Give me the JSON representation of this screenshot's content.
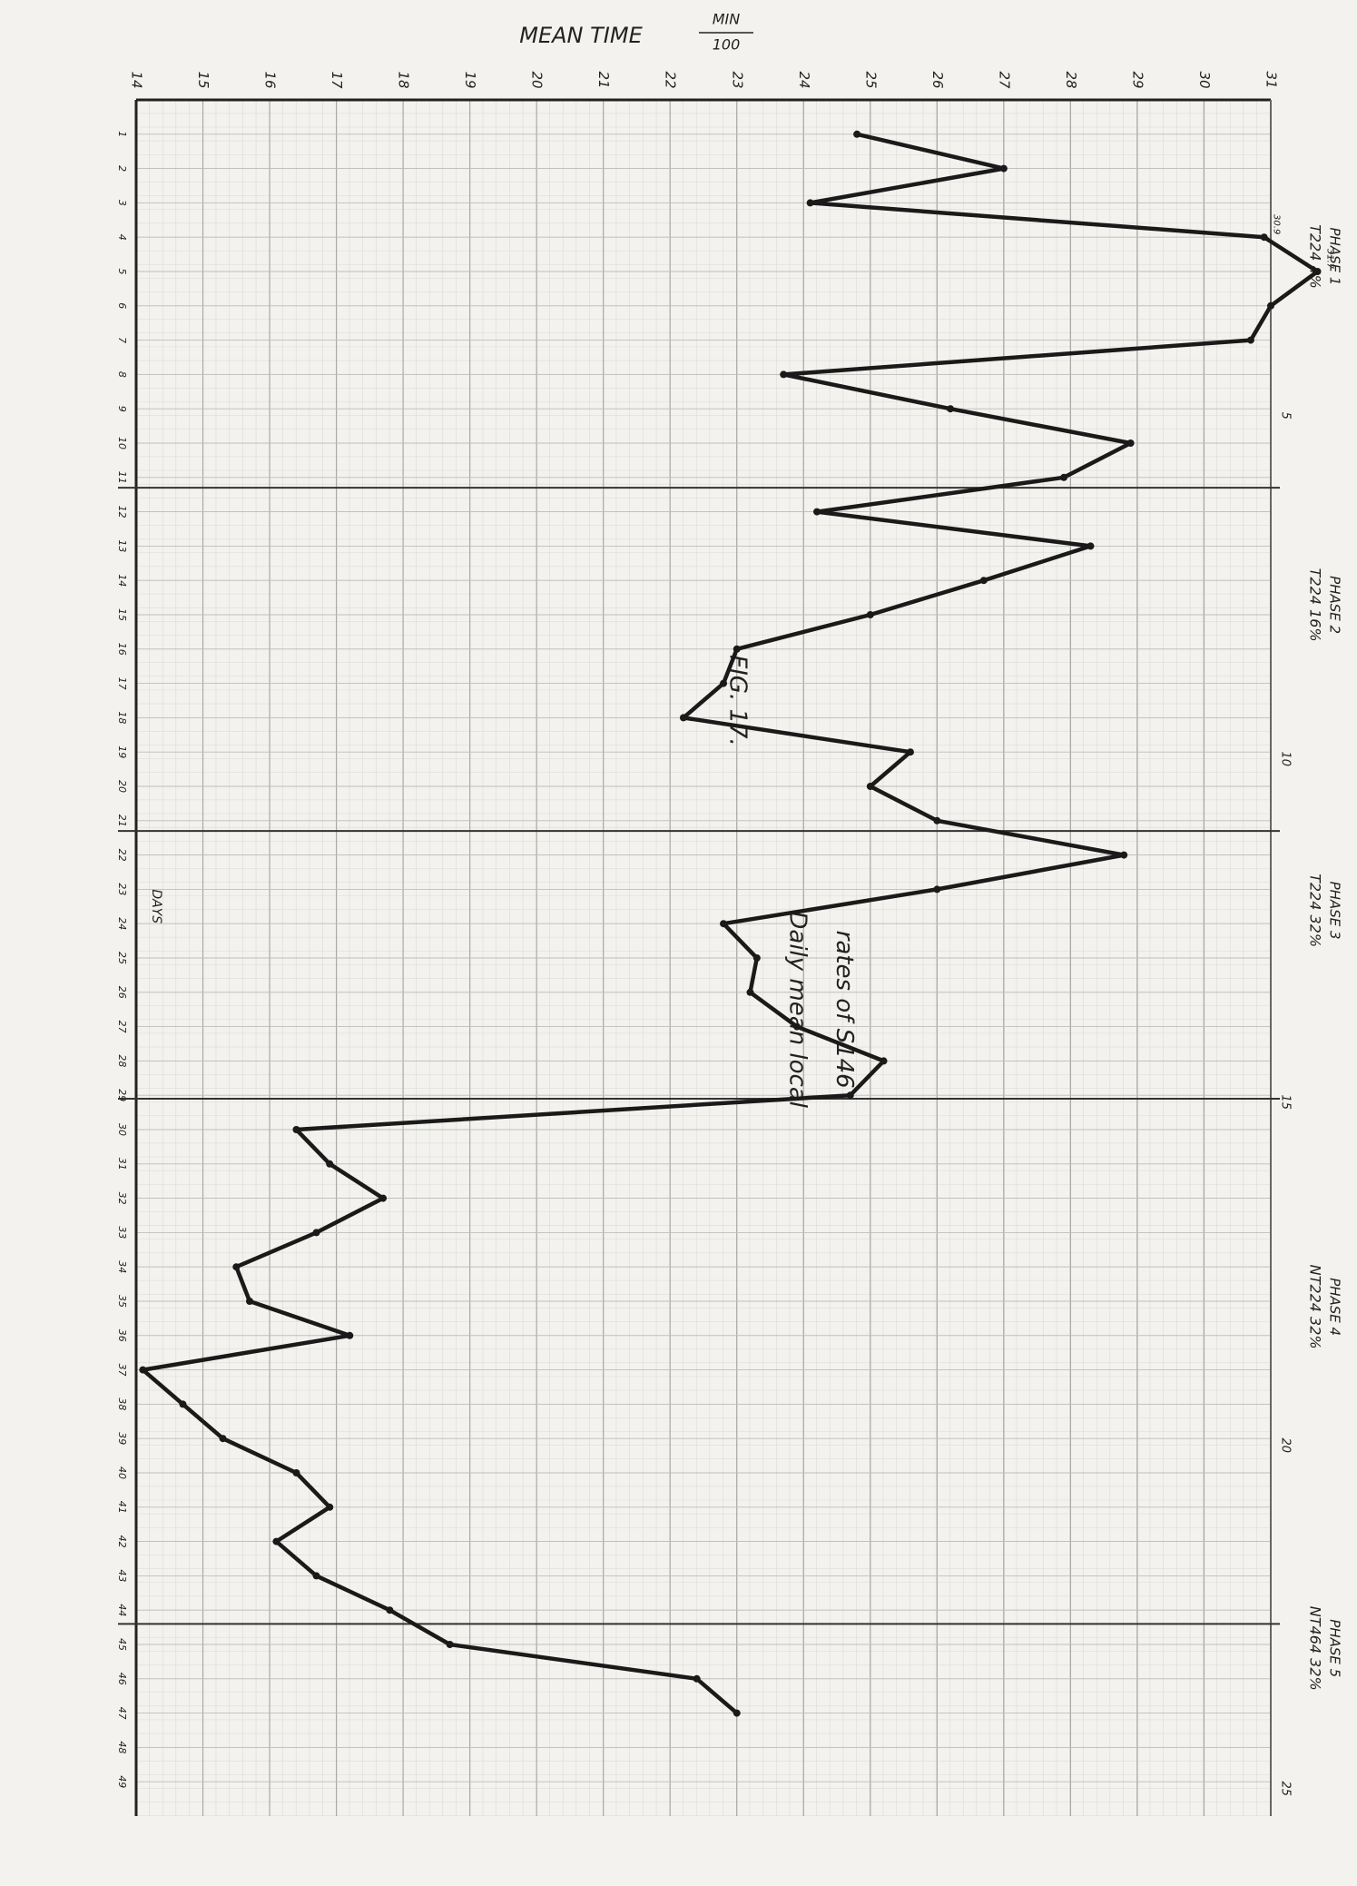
{
  "chart_data": {
    "type": "line",
    "title": "MEAN TIME",
    "unit_numerator": "MIN",
    "unit_denominator": "100",
    "x_label": "DAYS",
    "x": [
      1,
      2,
      3,
      4,
      5,
      6,
      7,
      8,
      9,
      10,
      11,
      12,
      13,
      14,
      15,
      16,
      17,
      18,
      19,
      20,
      21,
      22,
      23,
      24,
      25,
      26,
      27,
      28,
      29,
      30,
      31,
      32,
      33,
      34,
      35,
      36,
      37,
      38,
      39,
      40,
      41,
      42,
      43,
      44,
      45,
      46,
      47
    ],
    "values": [
      24.8,
      27.0,
      24.1,
      30.9,
      31.7,
      31.0,
      30.7,
      23.7,
      26.2,
      28.9,
      27.9,
      24.2,
      28.3,
      26.7,
      25.0,
      23.0,
      22.8,
      22.2,
      25.6,
      25.0,
      26.0,
      28.8,
      26.0,
      22.8,
      23.3,
      23.2,
      23.9,
      25.2,
      24.7,
      16.4,
      16.9,
      17.7,
      16.7,
      15.5,
      15.7,
      17.2,
      14.1,
      14.7,
      15.3,
      16.4,
      16.9,
      16.1,
      16.7,
      17.8,
      18.7,
      22.4,
      23.0
    ],
    "value_labels": [
      null,
      null,
      null,
      "30.9",
      "31.7",
      null,
      null,
      null,
      null,
      null,
      null,
      null,
      null,
      null,
      null,
      null,
      null,
      null,
      null,
      null,
      null,
      null,
      null,
      null,
      null,
      null,
      null,
      null,
      null,
      null,
      null,
      null,
      null,
      null,
      null,
      null,
      null,
      null,
      null,
      null,
      null,
      null,
      null,
      null,
      null,
      null,
      null
    ],
    "color": "#1a1a1a",
    "xlim": [
      0,
      50
    ],
    "xticks": [
      1,
      2,
      3,
      4,
      5,
      6,
      7,
      8,
      9,
      10,
      11,
      12,
      13,
      14,
      15,
      16,
      17,
      18,
      19,
      20,
      21,
      22,
      23,
      24,
      25,
      26,
      27,
      28,
      29,
      30,
      31,
      32,
      33,
      34,
      35,
      36,
      37,
      38,
      39,
      40,
      41,
      42,
      43,
      44,
      45,
      46,
      47,
      48,
      49
    ],
    "ylim": [
      14,
      31
    ],
    "yticks": [
      14,
      15,
      16,
      17,
      18,
      19,
      20,
      21,
      22,
      23,
      24,
      25,
      26,
      27,
      28,
      29,
      30,
      31
    ],
    "grid": true,
    "phase_boundaries": [
      11.3,
      21.3,
      29.1,
      44.4
    ],
    "phase_labels": [
      {
        "title": "PHASE 1",
        "text": "T224 4%"
      },
      {
        "title": "PHASE 2",
        "text": "T224 16%"
      },
      {
        "title": "PHASE 3",
        "text": "T224 32%"
      },
      {
        "title": "PHASE 4",
        "text": "NT224 32%"
      },
      {
        "title": "PHASE 5",
        "text": "NT464 32%"
      }
    ],
    "caption": [
      "FIG. 17.",
      "Daily mean local",
      "rates of S146"
    ],
    "paper_numbers": [
      "5",
      "10",
      "15",
      "20",
      "25"
    ]
  }
}
